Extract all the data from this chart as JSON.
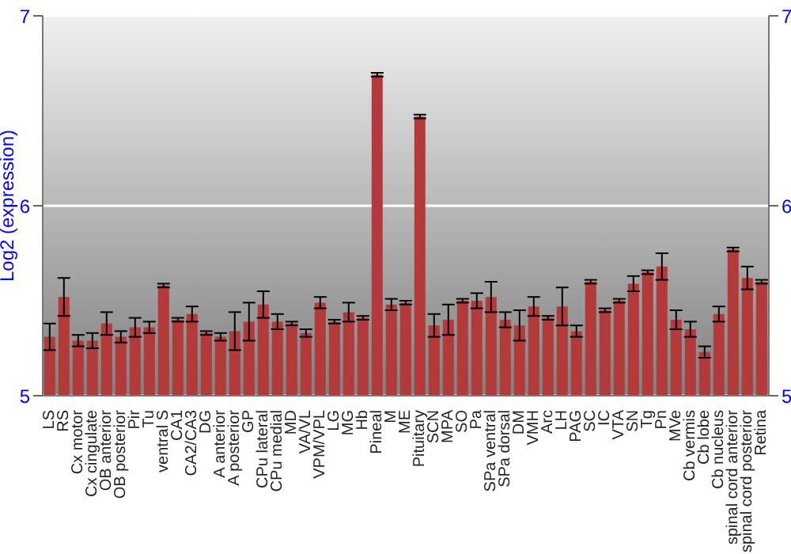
{
  "chart_data": {
    "type": "bar",
    "ylabel": "Log2 (expression)",
    "categories": [
      "LS",
      "RS",
      "Cx motor",
      "Cx cingulate",
      "OB anterior",
      "OB posterior",
      "Pir",
      "Tu",
      "ventral S",
      "CA1",
      "CA2/CA3",
      "DG",
      "A anterior",
      "A posterior",
      "GP",
      "CPu lateral",
      "CPu medial",
      "MD",
      "VA/VL",
      "VPM/VPL",
      "LG",
      "MG",
      "Hb",
      "Pineal",
      "M",
      "ME",
      "Pituitary",
      "SCN",
      "MPA",
      "SO",
      "Pa",
      "SPa ventral",
      "SPa dorsal",
      "DM",
      "VMH",
      "Arc",
      "LH",
      "PAG",
      "SC",
      "IC",
      "VTA",
      "SN",
      "Tg",
      "Pn",
      "MVe",
      "Cb vermis",
      "Cb lobe",
      "Cb nucleus",
      "spinal cord anterior",
      "spinal cord posterior",
      "Retina"
    ],
    "values": [
      5.31,
      5.52,
      5.29,
      5.29,
      5.38,
      5.31,
      5.36,
      5.36,
      5.58,
      5.4,
      5.43,
      5.33,
      5.31,
      5.34,
      5.39,
      5.48,
      5.39,
      5.38,
      5.33,
      5.49,
      5.39,
      5.44,
      5.41,
      6.69,
      5.48,
      5.49,
      6.47,
      5.37,
      5.4,
      5.5,
      5.5,
      5.52,
      5.4,
      5.37,
      5.47,
      5.41,
      5.47,
      5.34,
      5.6,
      5.45,
      5.5,
      5.59,
      5.65,
      5.68,
      5.4,
      5.35,
      5.23,
      5.43,
      5.77,
      5.62,
      5.6
    ],
    "errors": [
      0.07,
      0.1,
      0.03,
      0.04,
      0.06,
      0.03,
      0.05,
      0.03,
      0.01,
      0.01,
      0.04,
      0.01,
      0.02,
      0.1,
      0.1,
      0.07,
      0.04,
      0.01,
      0.02,
      0.03,
      0.01,
      0.05,
      0.01,
      0.01,
      0.03,
      0.01,
      0.01,
      0.06,
      0.08,
      0.01,
      0.04,
      0.08,
      0.04,
      0.08,
      0.05,
      0.01,
      0.1,
      0.03,
      0.01,
      0.01,
      0.01,
      0.04,
      0.01,
      0.07,
      0.05,
      0.04,
      0.03,
      0.04,
      0.01,
      0.06,
      0.01
    ],
    "color": "#b3393a",
    "ylim": [
      5,
      7
    ],
    "yticks": [
      5,
      6,
      7
    ],
    "y2lim": [
      5,
      7
    ],
    "y2ticks": [
      5,
      6,
      7
    ],
    "grid": "y"
  }
}
